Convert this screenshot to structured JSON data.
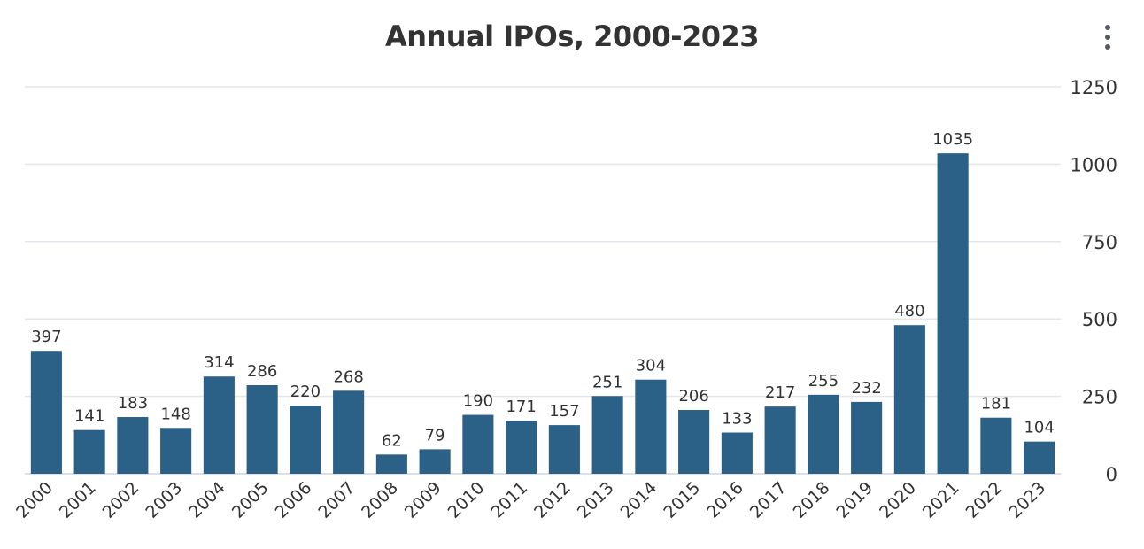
{
  "header": {
    "menu_icon": "kebab-menu-icon"
  },
  "chart_data": {
    "type": "bar",
    "title": "Annual IPOs, 2000-2023",
    "xlabel": "",
    "ylabel": "",
    "categories": [
      "2000",
      "2001",
      "2002",
      "2003",
      "2004",
      "2005",
      "2006",
      "2007",
      "2008",
      "2009",
      "2010",
      "2011",
      "2012",
      "2013",
      "2014",
      "2015",
      "2016",
      "2017",
      "2018",
      "2019",
      "2020",
      "2021",
      "2022",
      "2023"
    ],
    "values": [
      397,
      141,
      183,
      148,
      314,
      286,
      220,
      268,
      62,
      79,
      190,
      171,
      157,
      251,
      304,
      206,
      133,
      217,
      255,
      232,
      480,
      1035,
      181,
      104
    ],
    "ylim": [
      0,
      1250
    ],
    "yticks": [
      "0",
      "250",
      "500",
      "750",
      "1000",
      "1250"
    ],
    "y_axis_position": "right",
    "grid": true,
    "legend": "none",
    "bar_color": "#2c6187",
    "data_labels": true
  }
}
